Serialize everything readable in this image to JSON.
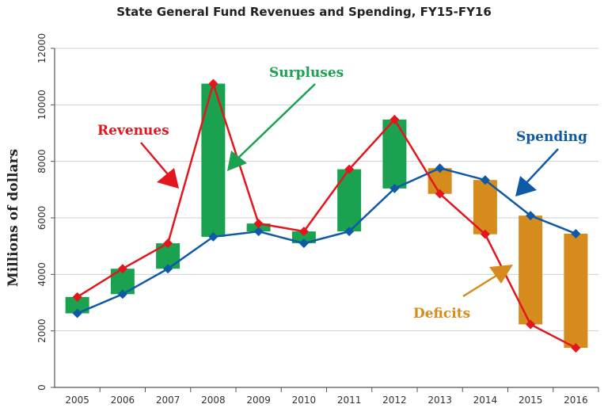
{
  "chart_data": {
    "type": "line",
    "title": "State General Fund Revenues and Spending, FY15-FY16",
    "xlabel": "",
    "ylabel": "Millions of dollars",
    "ylim": [
      0,
      12000
    ],
    "yticks": [
      0,
      2000,
      4000,
      6000,
      8000,
      10000,
      12000
    ],
    "grid": true,
    "categories": [
      "2005",
      "2006",
      "2007",
      "2008",
      "2009",
      "2010",
      "2011",
      "2012",
      "2013",
      "2014",
      "2015",
      "2016"
    ],
    "series": [
      {
        "name": "Revenues",
        "color": "#e3161d",
        "values": [
          3200,
          4200,
          5100,
          10750,
          5800,
          5520,
          7720,
          9480,
          6850,
          5420,
          2230,
          1400
        ]
      },
      {
        "name": "Spending",
        "color": "#0e5aa7",
        "values": [
          2620,
          3300,
          4200,
          5330,
          5520,
          5100,
          5520,
          7040,
          7760,
          7340,
          6080,
          5440
        ]
      }
    ],
    "bars": {
      "surplus_color": "#1aa251",
      "deficit_color": "#d58c1c"
    },
    "annotations": {
      "surpluses": "Surpluses",
      "deficits": "Deficits",
      "revenues": "Revenues",
      "spending": "Spending"
    }
  }
}
